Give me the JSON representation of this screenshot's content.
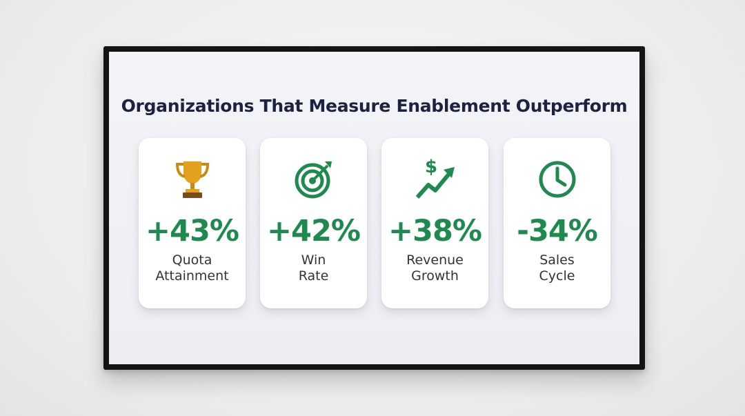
{
  "title": "Organizations That Measure Enablement Outperform",
  "cards": [
    {
      "value": "+43%",
      "label": [
        "Quota",
        "Attainment"
      ]
    },
    {
      "value": "+42%",
      "label": [
        "Win",
        "Rate"
      ]
    },
    {
      "value": "+38%",
      "label": [
        "Revenue",
        "Growth"
      ]
    },
    {
      "value": "-34%",
      "label": [
        "Sales",
        "Cycle"
      ]
    }
  ]
}
